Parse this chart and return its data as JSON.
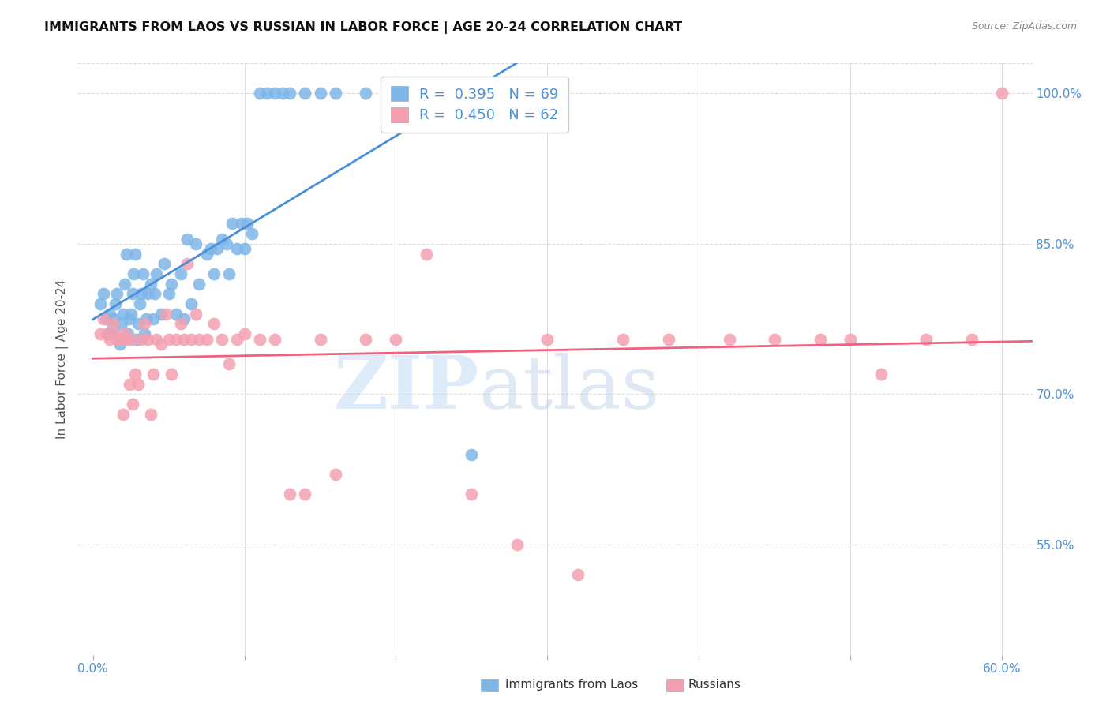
{
  "title": "IMMIGRANTS FROM LAOS VS RUSSIAN IN LABOR FORCE | AGE 20-24 CORRELATION CHART",
  "source": "Source: ZipAtlas.com",
  "ylabel": "In Labor Force | Age 20-24",
  "xlim": [
    -0.01,
    0.62
  ],
  "ylim": [
    0.44,
    1.03
  ],
  "xticks": [
    0.0,
    0.1,
    0.2,
    0.3,
    0.4,
    0.5,
    0.6
  ],
  "yticks": [
    0.55,
    0.7,
    0.85,
    1.0
  ],
  "ytick_labels": [
    "55.0%",
    "70.0%",
    "85.0%",
    "100.0%"
  ],
  "r_laos": 0.395,
  "n_laos": 69,
  "r_russian": 0.45,
  "n_russian": 62,
  "laos_color": "#7eb6e8",
  "russian_color": "#f4a0b0",
  "laos_line_color": "#4a90d9",
  "russian_line_color": "#f06080",
  "laos_x": [
    0.005,
    0.007,
    0.009,
    0.01,
    0.011,
    0.013,
    0.014,
    0.015,
    0.016,
    0.018,
    0.019,
    0.02,
    0.021,
    0.022,
    0.023,
    0.024,
    0.025,
    0.026,
    0.027,
    0.028,
    0.029,
    0.03,
    0.031,
    0.032,
    0.033,
    0.034,
    0.035,
    0.036,
    0.038,
    0.04,
    0.041,
    0.042,
    0.045,
    0.047,
    0.05,
    0.052,
    0.055,
    0.058,
    0.06,
    0.062,
    0.065,
    0.068,
    0.07,
    0.075,
    0.078,
    0.08,
    0.082,
    0.085,
    0.088,
    0.09,
    0.092,
    0.095,
    0.098,
    0.1,
    0.102,
    0.105,
    0.11,
    0.115,
    0.12,
    0.125,
    0.13,
    0.14,
    0.15,
    0.16,
    0.18,
    0.2,
    0.22,
    0.25,
    0.3
  ],
  "laos_y": [
    0.79,
    0.8,
    0.775,
    0.76,
    0.78,
    0.765,
    0.775,
    0.79,
    0.8,
    0.75,
    0.77,
    0.78,
    0.81,
    0.84,
    0.76,
    0.775,
    0.78,
    0.8,
    0.82,
    0.84,
    0.755,
    0.77,
    0.79,
    0.8,
    0.82,
    0.76,
    0.775,
    0.8,
    0.81,
    0.775,
    0.8,
    0.82,
    0.78,
    0.83,
    0.8,
    0.81,
    0.78,
    0.82,
    0.775,
    0.855,
    0.79,
    0.85,
    0.81,
    0.84,
    0.845,
    0.82,
    0.845,
    0.855,
    0.85,
    0.82,
    0.87,
    0.845,
    0.87,
    0.845,
    0.87,
    0.86,
    1.0,
    1.0,
    1.0,
    1.0,
    1.0,
    1.0,
    1.0,
    1.0,
    1.0,
    1.0,
    1.0,
    0.64,
    1.0
  ],
  "russian_x": [
    0.005,
    0.007,
    0.009,
    0.011,
    0.013,
    0.015,
    0.016,
    0.018,
    0.02,
    0.021,
    0.022,
    0.024,
    0.025,
    0.026,
    0.028,
    0.03,
    0.032,
    0.034,
    0.036,
    0.038,
    0.04,
    0.042,
    0.045,
    0.048,
    0.05,
    0.052,
    0.055,
    0.058,
    0.06,
    0.062,
    0.065,
    0.068,
    0.07,
    0.075,
    0.08,
    0.085,
    0.09,
    0.095,
    0.1,
    0.11,
    0.12,
    0.13,
    0.14,
    0.15,
    0.16,
    0.18,
    0.2,
    0.22,
    0.25,
    0.28,
    0.3,
    0.32,
    0.35,
    0.38,
    0.42,
    0.45,
    0.48,
    0.5,
    0.52,
    0.55,
    0.58,
    0.6
  ],
  "russian_y": [
    0.76,
    0.775,
    0.76,
    0.755,
    0.77,
    0.76,
    0.755,
    0.755,
    0.68,
    0.76,
    0.755,
    0.71,
    0.755,
    0.69,
    0.72,
    0.71,
    0.755,
    0.77,
    0.755,
    0.68,
    0.72,
    0.755,
    0.75,
    0.78,
    0.755,
    0.72,
    0.755,
    0.77,
    0.755,
    0.83,
    0.755,
    0.78,
    0.755,
    0.755,
    0.77,
    0.755,
    0.73,
    0.755,
    0.76,
    0.755,
    0.755,
    0.6,
    0.6,
    0.755,
    0.62,
    0.755,
    0.755,
    0.84,
    0.6,
    0.55,
    0.755,
    0.52,
    0.755,
    0.755,
    0.755,
    0.755,
    0.755,
    0.755,
    0.72,
    0.755,
    0.755,
    1.0
  ],
  "watermark_zip": "ZIP",
  "watermark_atlas": "atlas",
  "background_color": "#ffffff",
  "grid_color": "#dddddd"
}
